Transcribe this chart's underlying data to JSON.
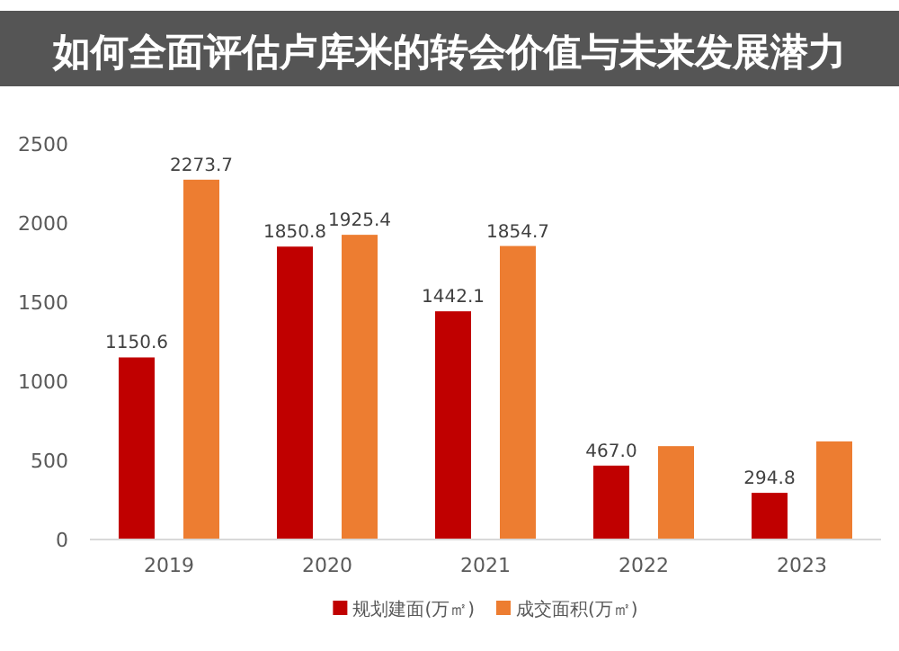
{
  "chart_data": {
    "type": "bar",
    "title": "如何全面评估卢库米的转会价值与未来发展潜力",
    "categories": [
      "2019",
      "2020",
      "2021",
      "2022",
      "2023"
    ],
    "series": [
      {
        "name": "规划建面(万㎡)",
        "color": "#c00000",
        "values": [
          1150.6,
          1850.8,
          1442.1,
          467.0,
          294.8
        ],
        "value_labels": [
          "1150.6",
          "1850.8",
          "1442.1",
          "467.0",
          "294.8"
        ]
      },
      {
        "name": "成交面积(万㎡)",
        "color": "#ed7d31",
        "values": [
          2273.7,
          1925.4,
          1854.7,
          590,
          620
        ],
        "value_labels": [
          "2273.7",
          "1925.4",
          "1854.7",
          null,
          null
        ]
      }
    ],
    "ylim": [
      0,
      2500
    ],
    "yticks": [
      0,
      500,
      1000,
      1500,
      2000,
      2500
    ],
    "grid": false,
    "legend": "bottom"
  }
}
